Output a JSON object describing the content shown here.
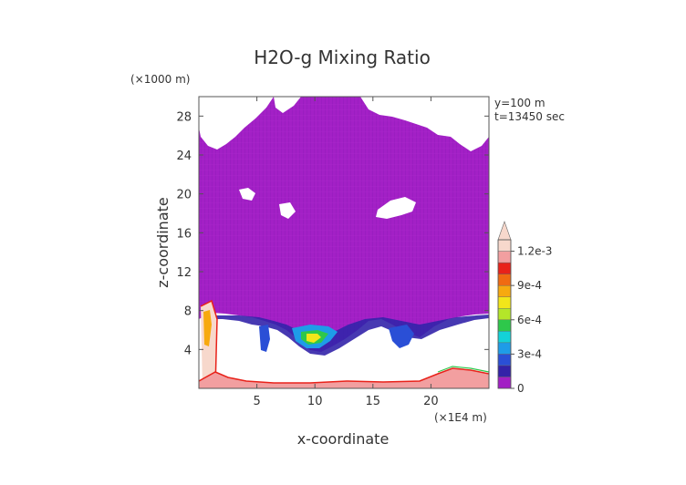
{
  "chart_data": {
    "type": "heatmap",
    "title": "H2O-g Mixing Ratio",
    "xlabel": "x-coordinate",
    "ylabel": "z-coordinate",
    "x_unit": "(×1E4 m)",
    "y_unit": "(×1000 m)",
    "annotations": [
      "y=100 m",
      "t=13450 sec"
    ],
    "xlim": [
      0,
      25
    ],
    "ylim": [
      0,
      30
    ],
    "x_ticks": [
      5,
      10,
      15,
      20
    ],
    "x_tick_labels": [
      "5",
      "10",
      "15",
      "20"
    ],
    "y_ticks": [
      4,
      8,
      12,
      16,
      20,
      24,
      28
    ],
    "y_tick_labels": [
      "4",
      "8",
      "12",
      "16",
      "20",
      "24",
      "28"
    ],
    "colorbar": {
      "levels": [
        0,
        0.0001,
        0.0002,
        0.0003,
        0.0004,
        0.0005,
        0.0006,
        0.0007,
        0.0008,
        0.0009,
        0.001,
        0.0011,
        0.0012,
        0.0013
      ],
      "tick_values": [
        0,
        0.0003,
        0.0006,
        0.0009,
        0.0012
      ],
      "tick_labels": [
        "0",
        "3e-4",
        "6e-4",
        "9e-4",
        "1.2e-3"
      ],
      "colors": [
        "#a21fc4",
        "#3322a8",
        "#2a4fd6",
        "#1e9ce8",
        "#13d2d8",
        "#2ec84b",
        "#b4e629",
        "#f2e61a",
        "#f7a90f",
        "#f06a12",
        "#e8221a",
        "#f29fa0",
        "#f7d8cc"
      ]
    },
    "regions": [
      {
        "label": "background vapor",
        "level": 0,
        "x_range": [
          0,
          25
        ],
        "z_range": [
          8,
          30
        ]
      },
      {
        "label": "moist band",
        "level": 0.0003,
        "x_range": [
          4,
          19
        ],
        "z_range": [
          4,
          8
        ]
      },
      {
        "label": "moist core",
        "level": 0.0006,
        "x": 9.5,
        "z": 5
      },
      {
        "label": "left column",
        "level": 0.0012,
        "x": 0.7,
        "z_range": [
          0,
          8
        ]
      },
      {
        "label": "surface layer",
        "level": 0.0009,
        "x_range": [
          0,
          25
        ],
        "z_range": [
          0,
          0.6
        ]
      }
    ],
    "grid": false,
    "legend": "right"
  }
}
